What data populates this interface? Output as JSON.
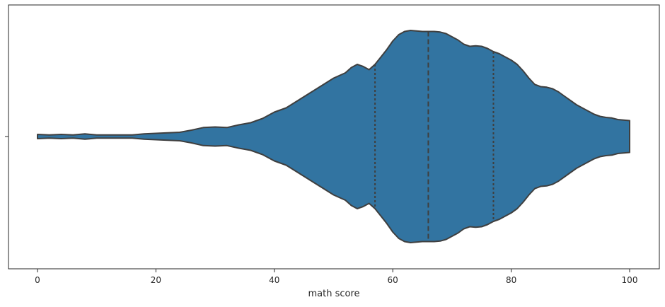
{
  "chart_data": {
    "type": "violin",
    "title": "",
    "xlabel": "math score",
    "ylabel": "",
    "xlim": [
      -5,
      105
    ],
    "x_ticks": [
      0,
      20,
      40,
      60,
      80,
      100
    ],
    "orientation": "horizontal",
    "color": "#3274a1",
    "outline_color": "#3f3f3f",
    "inner": "quartile",
    "quartiles": {
      "q1": 57,
      "median": 66,
      "q3": 77
    },
    "data_range": [
      0,
      100
    ],
    "density_profile": {
      "x": [
        0,
        2,
        4,
        6,
        8,
        10,
        12,
        14,
        16,
        18,
        20,
        22,
        24,
        26,
        28,
        30,
        32,
        34,
        36,
        38,
        40,
        42,
        44,
        46,
        48,
        50,
        52,
        53,
        54,
        55,
        56,
        57,
        58,
        59,
        60,
        61,
        62,
        63,
        64,
        65,
        66,
        67,
        68,
        69,
        70,
        71,
        72,
        73,
        74,
        75,
        76,
        77,
        78,
        79,
        80,
        81,
        82,
        83,
        84,
        85,
        86,
        87,
        88,
        89,
        90,
        91,
        92,
        93,
        94,
        95,
        96,
        97,
        98,
        99,
        100
      ],
      "half_width": [
        0.02,
        0.015,
        0.02,
        0.015,
        0.025,
        0.015,
        0.015,
        0.015,
        0.015,
        0.025,
        0.03,
        0.035,
        0.04,
        0.06,
        0.085,
        0.09,
        0.085,
        0.11,
        0.13,
        0.17,
        0.23,
        0.27,
        0.34,
        0.41,
        0.48,
        0.55,
        0.6,
        0.65,
        0.68,
        0.66,
        0.63,
        0.68,
        0.75,
        0.82,
        0.9,
        0.96,
        0.99,
        1.0,
        0.995,
        0.99,
        0.99,
        0.99,
        0.985,
        0.97,
        0.94,
        0.91,
        0.87,
        0.85,
        0.855,
        0.85,
        0.83,
        0.8,
        0.78,
        0.75,
        0.72,
        0.68,
        0.62,
        0.55,
        0.49,
        0.47,
        0.465,
        0.45,
        0.42,
        0.38,
        0.34,
        0.3,
        0.27,
        0.24,
        0.21,
        0.19,
        0.18,
        0.175,
        0.16,
        0.155,
        0.15
      ]
    }
  }
}
